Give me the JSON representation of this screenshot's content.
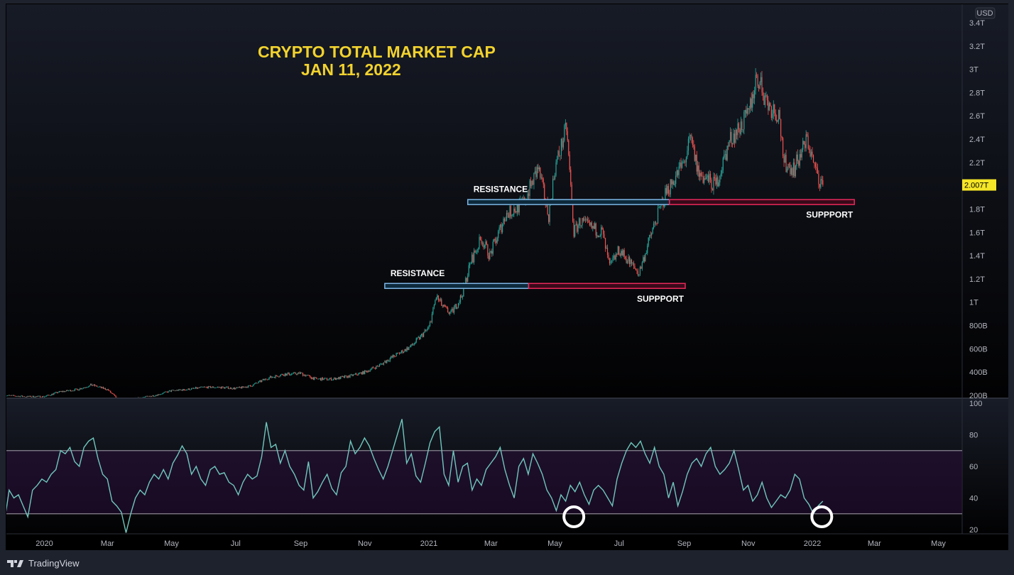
{
  "chart_data": [
    {
      "type": "candlestick",
      "title": "CRYPTO TOTAL MARKET CAP",
      "subtitle": "JAN 11, 2022",
      "currency": "USD",
      "last_price_label": "2.007T",
      "ylim": [
        0.2,
        3.45
      ],
      "y_ticks": [
        {
          "value": 3.4,
          "label": "3.4T"
        },
        {
          "value": 3.2,
          "label": "3.2T"
        },
        {
          "value": 3.0,
          "label": "3T"
        },
        {
          "value": 2.8,
          "label": "2.8T"
        },
        {
          "value": 2.6,
          "label": "2.6T"
        },
        {
          "value": 2.4,
          "label": "2.4T"
        },
        {
          "value": 2.2,
          "label": "2.2T"
        },
        {
          "value": 1.8,
          "label": "1.8T"
        },
        {
          "value": 1.6,
          "label": "1.6T"
        },
        {
          "value": 1.4,
          "label": "1.4T"
        },
        {
          "value": 1.2,
          "label": "1.2T"
        },
        {
          "value": 1.0,
          "label": "1T"
        },
        {
          "value": 0.8,
          "label": "800B"
        },
        {
          "value": 0.6,
          "label": "600B"
        },
        {
          "value": 0.4,
          "label": "400B"
        },
        {
          "value": 0.2,
          "label": "200B"
        }
      ],
      "x_ticks": [
        {
          "date": "2020-01-01",
          "label": "2020"
        },
        {
          "date": "2020-03-01",
          "label": "Mar"
        },
        {
          "date": "2020-05-01",
          "label": "May"
        },
        {
          "date": "2020-07-01",
          "label": "Jul"
        },
        {
          "date": "2020-09-01",
          "label": "Sep"
        },
        {
          "date": "2020-11-01",
          "label": "Nov"
        },
        {
          "date": "2021-01-01",
          "label": "2021"
        },
        {
          "date": "2021-03-01",
          "label": "Mar"
        },
        {
          "date": "2021-05-01",
          "label": "May"
        },
        {
          "date": "2021-07-01",
          "label": "Jul"
        },
        {
          "date": "2021-09-01",
          "label": "Sep"
        },
        {
          "date": "2021-11-01",
          "label": "Nov"
        },
        {
          "date": "2022-01-01",
          "label": "2022"
        },
        {
          "date": "2022-03-01",
          "label": "Mar"
        },
        {
          "date": "2022-05-01",
          "label": "May"
        }
      ],
      "unit": "T USD",
      "price_points": [
        [
          "2019-11-24",
          0.2
        ],
        [
          "2019-12-15",
          0.19
        ],
        [
          "2020-01-01",
          0.19
        ],
        [
          "2020-01-15",
          0.23
        ],
        [
          "2020-02-01",
          0.25
        ],
        [
          "2020-02-15",
          0.29
        ],
        [
          "2020-03-01",
          0.25
        ],
        [
          "2020-03-13",
          0.15
        ],
        [
          "2020-04-01",
          0.18
        ],
        [
          "2020-04-15",
          0.2
        ],
        [
          "2020-05-01",
          0.24
        ],
        [
          "2020-05-15",
          0.25
        ],
        [
          "2020-06-01",
          0.27
        ],
        [
          "2020-06-15",
          0.27
        ],
        [
          "2020-07-01",
          0.26
        ],
        [
          "2020-07-15",
          0.28
        ],
        [
          "2020-08-01",
          0.35
        ],
        [
          "2020-08-15",
          0.38
        ],
        [
          "2020-09-01",
          0.39
        ],
        [
          "2020-09-15",
          0.34
        ],
        [
          "2020-10-01",
          0.34
        ],
        [
          "2020-10-15",
          0.36
        ],
        [
          "2020-11-01",
          0.4
        ],
        [
          "2020-11-15",
          0.46
        ],
        [
          "2020-12-01",
          0.55
        ],
        [
          "2020-12-15",
          0.62
        ],
        [
          "2021-01-01",
          0.78
        ],
        [
          "2021-01-08",
          1.05
        ],
        [
          "2021-01-15",
          0.95
        ],
        [
          "2021-01-22",
          0.9
        ],
        [
          "2021-02-01",
          1.05
        ],
        [
          "2021-02-10",
          1.35
        ],
        [
          "2021-02-20",
          1.55
        ],
        [
          "2021-02-28",
          1.4
        ],
        [
          "2021-03-15",
          1.75
        ],
        [
          "2021-04-01",
          1.85
        ],
        [
          "2021-04-15",
          2.15
        ],
        [
          "2021-04-25",
          1.75
        ],
        [
          "2021-05-01",
          2.15
        ],
        [
          "2021-05-12",
          2.5
        ],
        [
          "2021-05-19",
          1.6
        ],
        [
          "2021-05-25",
          1.7
        ],
        [
          "2021-06-01",
          1.65
        ],
        [
          "2021-06-15",
          1.6
        ],
        [
          "2021-06-22",
          1.3
        ],
        [
          "2021-07-01",
          1.45
        ],
        [
          "2021-07-20",
          1.25
        ],
        [
          "2021-08-01",
          1.6
        ],
        [
          "2021-08-15",
          1.95
        ],
        [
          "2021-09-01",
          2.2
        ],
        [
          "2021-09-07",
          2.4
        ],
        [
          "2021-09-15",
          2.1
        ],
        [
          "2021-10-01",
          2.0
        ],
        [
          "2021-10-15",
          2.4
        ],
        [
          "2021-11-01",
          2.6
        ],
        [
          "2021-11-09",
          2.95
        ],
        [
          "2021-11-20",
          2.7
        ],
        [
          "2021-12-01",
          2.6
        ],
        [
          "2021-12-04",
          2.2
        ],
        [
          "2021-12-15",
          2.15
        ],
        [
          "2021-12-27",
          2.4
        ],
        [
          "2022-01-05",
          2.1
        ],
        [
          "2022-01-11",
          2.007
        ]
      ],
      "levels": [
        {
          "label": "RESISTANCE",
          "value": 1.14,
          "start": "2020-11-20",
          "end": "2021-04-06",
          "color": "#7eb6e6",
          "role": "resistance"
        },
        {
          "label": "SUPPPORT",
          "value": 1.14,
          "start": "2021-04-06",
          "end": "2021-09-02",
          "color": "#e8285a",
          "role": "support"
        },
        {
          "label": "RESISTANCE",
          "value": 1.86,
          "start": "2021-02-07",
          "end": "2021-08-18",
          "color": "#7eb6e6",
          "role": "resistance"
        },
        {
          "label": "SUPPPORT",
          "value": 1.86,
          "start": "2021-08-18",
          "end": "2022-02-10",
          "color": "#e8285a",
          "role": "support"
        }
      ]
    },
    {
      "type": "line",
      "indicator": "RSI",
      "ylim": [
        15,
        100
      ],
      "y_ticks": [
        100,
        80,
        60,
        40,
        20
      ],
      "bands": [
        30,
        70
      ],
      "date_range": [
        "2019-11-24",
        "2022-01-11"
      ],
      "values": [
        25,
        45,
        40,
        42,
        35,
        28,
        45,
        48,
        52,
        50,
        55,
        58,
        70,
        68,
        72,
        63,
        60,
        72,
        76,
        78,
        65,
        55,
        52,
        38,
        35,
        31,
        18,
        30,
        40,
        45,
        42,
        50,
        55,
        52,
        58,
        52,
        62,
        67,
        73,
        68,
        55,
        60,
        52,
        48,
        58,
        60,
        55,
        56,
        50,
        48,
        42,
        50,
        55,
        52,
        54,
        66,
        88,
        72,
        74,
        62,
        70,
        60,
        55,
        48,
        45,
        63,
        40,
        44,
        50,
        55,
        46,
        42,
        56,
        60,
        76,
        68,
        72,
        78,
        73,
        65,
        58,
        52,
        60,
        70,
        80,
        90,
        62,
        68,
        54,
        50,
        62,
        75,
        82,
        85,
        55,
        48,
        70,
        50,
        60,
        62,
        45,
        52,
        48,
        58,
        62,
        66,
        72,
        58,
        48,
        40,
        60,
        65,
        55,
        68,
        62,
        55,
        45,
        40,
        32,
        42,
        38,
        48,
        44,
        50,
        42,
        36,
        45,
        48,
        45,
        40,
        35,
        52,
        62,
        70,
        75,
        72,
        76,
        68,
        62,
        72,
        60,
        55,
        40,
        50,
        35,
        44,
        55,
        62,
        65,
        60,
        68,
        72,
        60,
        55,
        58,
        62,
        70,
        58,
        45,
        48,
        38,
        42,
        50,
        40,
        34,
        38,
        42,
        40,
        45,
        55,
        52,
        40,
        36,
        30,
        35,
        38
      ],
      "highlighted_dips": [
        "2021-05-19",
        "2022-01-10"
      ],
      "line_color": "#6fc7bd"
    }
  ],
  "colors": {
    "up": "#26a69a",
    "down": "#ef5350",
    "title": "#f2d22e",
    "last_price_bg": "#f5e627"
  },
  "footer": {
    "brand": "TradingView"
  }
}
